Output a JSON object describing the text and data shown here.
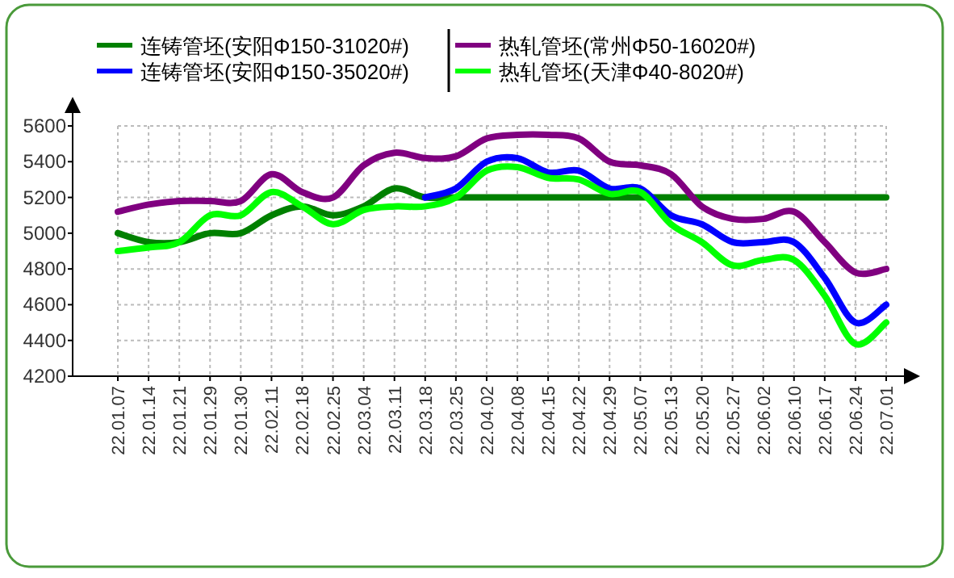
{
  "chart_data": {
    "type": "line",
    "categories": [
      "22.01.07",
      "22.01.14",
      "22.01.21",
      "22.01.29",
      "22.01.30",
      "22.02.11",
      "22.02.18",
      "22.02.25",
      "22.03.04",
      "22.03.11",
      "22.03.18",
      "22.03.25",
      "22.04.02",
      "22.04.08",
      "22.04.15",
      "22.04.22",
      "22.04.29",
      "22.05.07",
      "22.05.13",
      "22.05.20",
      "22.05.27",
      "22.06.02",
      "22.06.10",
      "22.06.17",
      "22.06.24",
      "22.07.01"
    ],
    "series": [
      {
        "name": "连铸管坯(安阳Φ150-31020#)",
        "color": "#008000",
        "values": [
          5000,
          4950,
          4950,
          5000,
          5000,
          5100,
          5150,
          5100,
          5150,
          5250,
          5200,
          5200,
          5200,
          5200,
          5200,
          5200,
          5200,
          5200,
          5200,
          5200,
          5200,
          5200,
          5200,
          5200,
          5200,
          5200
        ]
      },
      {
        "name": "连铸管坯(安阳Φ150-35020#)",
        "color": "#0000ff",
        "values": [
          null,
          null,
          null,
          null,
          null,
          null,
          null,
          null,
          null,
          null,
          5200,
          5250,
          5400,
          5420,
          5340,
          5350,
          5250,
          5250,
          5100,
          5050,
          4950,
          4950,
          4950,
          4750,
          4500,
          4600
        ]
      },
      {
        "name": "热轧管坯(常州Φ50-16020#)",
        "color": "#800080",
        "values": [
          5120,
          5160,
          5180,
          5180,
          5180,
          5330,
          5230,
          5200,
          5380,
          5450,
          5420,
          5430,
          5530,
          5550,
          5550,
          5530,
          5400,
          5380,
          5330,
          5150,
          5080,
          5080,
          5120,
          4950,
          4780,
          4800
        ]
      },
      {
        "name": "热轧管坯(天津Φ40-8020#)",
        "color": "#00ff00",
        "values": [
          4900,
          4920,
          4950,
          5100,
          5100,
          5230,
          5150,
          5050,
          5130,
          5150,
          5150,
          5200,
          5350,
          5370,
          5310,
          5300,
          5220,
          5230,
          5050,
          4950,
          4820,
          4850,
          4850,
          4650,
          4380,
          4500
        ]
      }
    ],
    "ylim": [
      4200,
      5600
    ],
    "yticks": [
      4200,
      4400,
      4600,
      4800,
      5000,
      5200,
      5400,
      5600
    ],
    "grid": true,
    "legend": "top"
  }
}
